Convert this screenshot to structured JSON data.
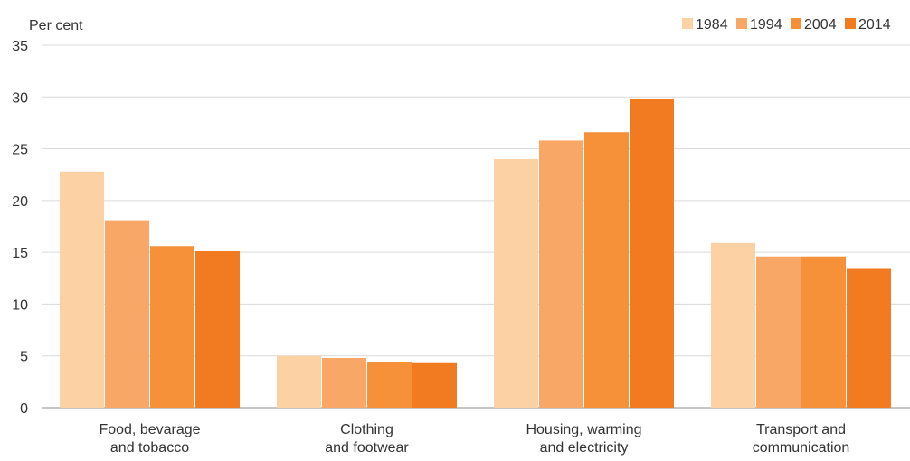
{
  "chart_data": {
    "type": "bar",
    "ylabel": "Per cent",
    "ylim": [
      0,
      35
    ],
    "yticks": [
      0,
      5,
      10,
      15,
      20,
      25,
      30,
      35
    ],
    "grid": true,
    "legend_position": "top-right",
    "categories": [
      [
        "Food, bevarage",
        "and tobacco"
      ],
      [
        "Clothing",
        "and footwear"
      ],
      [
        "Housing, warming",
        "and electricity"
      ],
      [
        "Transport and",
        "communication"
      ]
    ],
    "series": [
      {
        "name": "1984",
        "color": "#fcd1a3",
        "values": [
          22.8,
          5.0,
          24.0,
          15.9
        ]
      },
      {
        "name": "1994",
        "color": "#f9a766",
        "values": [
          18.1,
          4.8,
          25.8,
          14.6
        ]
      },
      {
        "name": "2004",
        "color": "#f6913a",
        "values": [
          15.6,
          4.4,
          26.6,
          14.6
        ]
      },
      {
        "name": "2014",
        "color": "#f27b22",
        "values": [
          15.1,
          4.3,
          29.8,
          13.4
        ]
      }
    ]
  }
}
